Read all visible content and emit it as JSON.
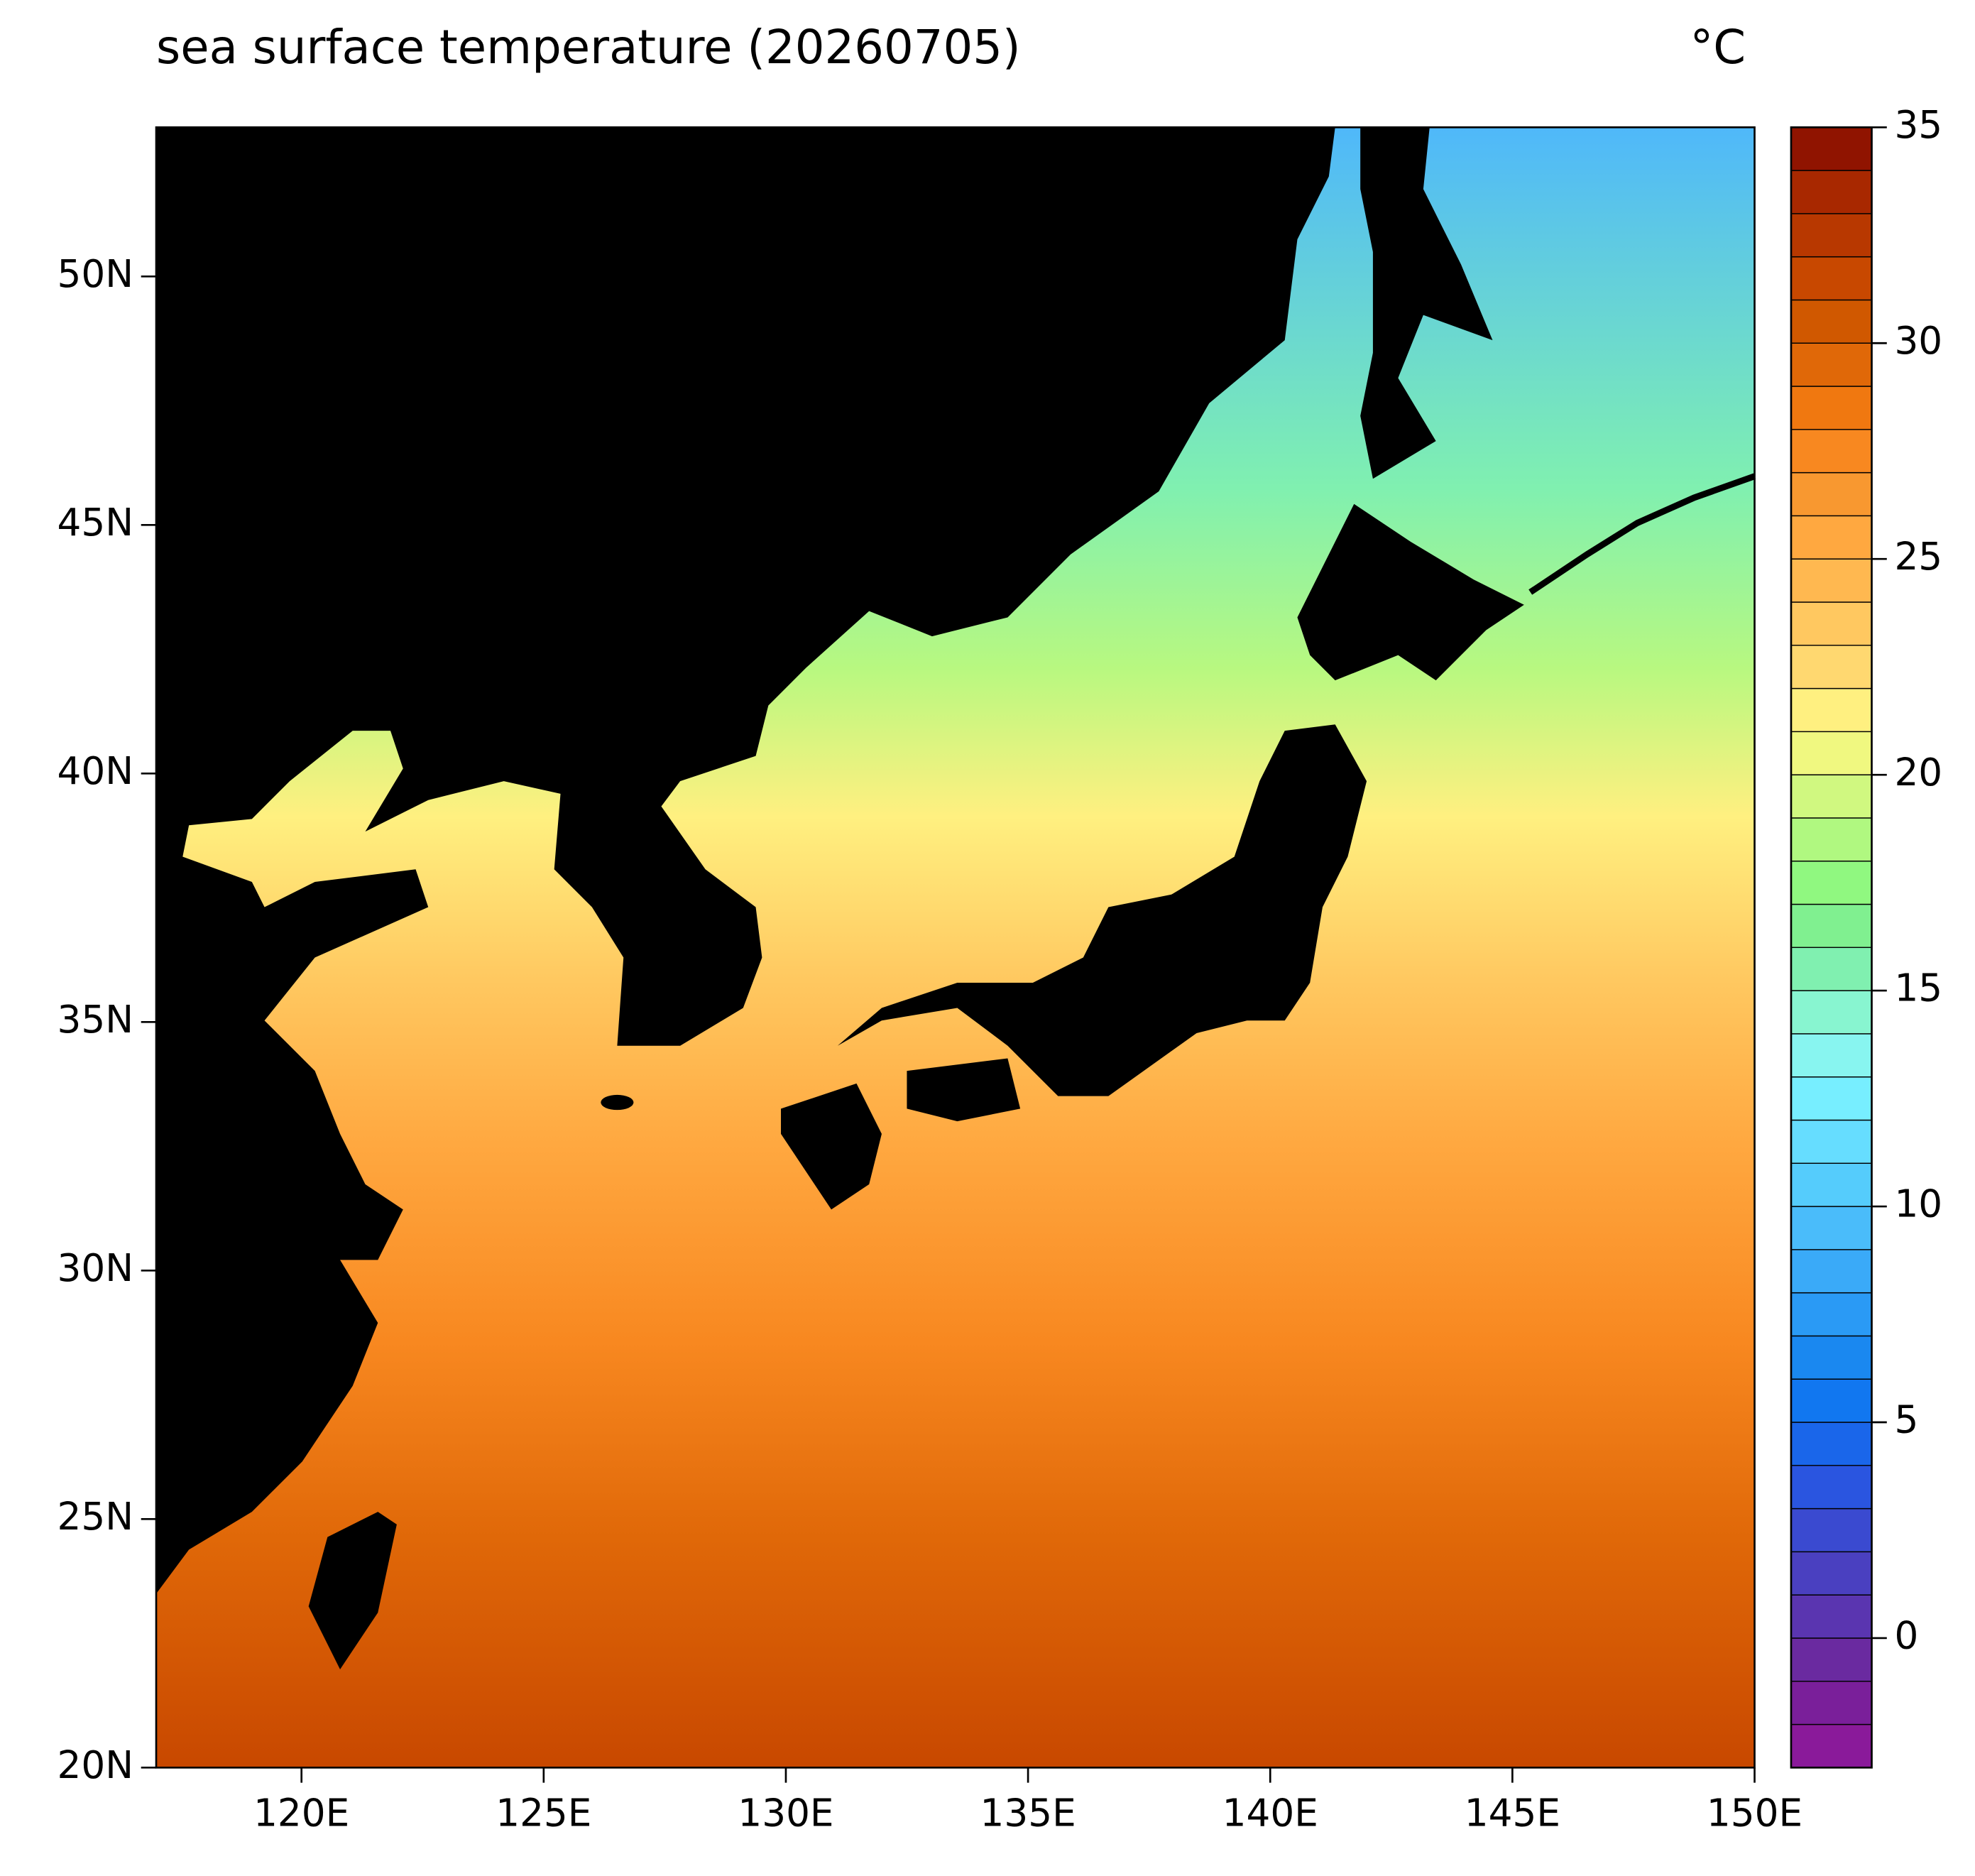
{
  "title": "sea surface temperature (20260705)",
  "unit": "°C",
  "map": {
    "xlim": [
      117,
      150
    ],
    "ylim": [
      20,
      53
    ],
    "xticks": [
      {
        "value": 120,
        "label": "120E"
      },
      {
        "value": 125,
        "label": "125E"
      },
      {
        "value": 130,
        "label": "130E"
      },
      {
        "value": 135,
        "label": "135E"
      },
      {
        "value": 140,
        "label": "140E"
      },
      {
        "value": 145,
        "label": "145E"
      },
      {
        "value": 150,
        "label": "150E"
      }
    ],
    "yticks": [
      {
        "value": 20,
        "label": "20N"
      },
      {
        "value": 25,
        "label": "25N"
      },
      {
        "value": 30,
        "label": "30N"
      },
      {
        "value": 35,
        "label": "35N"
      },
      {
        "value": 40,
        "label": "40N"
      },
      {
        "value": 45,
        "label": "45N"
      },
      {
        "value": 50,
        "label": "50N"
      }
    ]
  },
  "colorbar": {
    "lim": [
      -3,
      35
    ],
    "ticks": [
      0,
      5,
      10,
      15,
      20,
      25,
      30,
      35
    ],
    "colors": [
      "#8a1a9a",
      "#7a1f9a",
      "#6a2aa0",
      "#5a35b0",
      "#4a40c0",
      "#3a4ad0",
      "#2a55e0",
      "#1a66ea",
      "#1177f0",
      "#1a88f0",
      "#2a9af5",
      "#3aaaf8",
      "#4abcfa",
      "#55ccfc",
      "#66ddff",
      "#77eeff",
      "#88f5f0",
      "#88f5d0",
      "#80f0b0",
      "#80f090",
      "#90f880",
      "#b0f880",
      "#d0f880",
      "#f0f880",
      "#fff080",
      "#ffd870",
      "#ffc860",
      "#ffb850",
      "#ffa840",
      "#f89830",
      "#f88820",
      "#f07810",
      "#e06808",
      "#d05800",
      "#c84800",
      "#b83800",
      "#a82800",
      "#901400"
    ]
  }
}
